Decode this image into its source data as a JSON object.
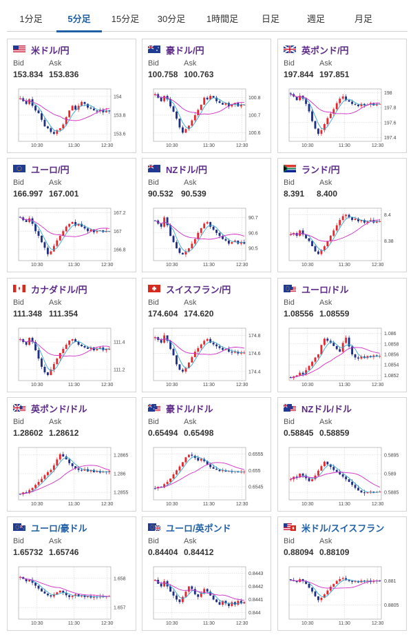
{
  "tabs": [
    {
      "label": "1分足",
      "active": false
    },
    {
      "label": "5分足",
      "active": true
    },
    {
      "label": "15分足",
      "active": false
    },
    {
      "label": "30分足",
      "active": false
    },
    {
      "label": "1時間足",
      "active": false
    },
    {
      "label": "日足",
      "active": false
    },
    {
      "label": "週足",
      "active": false
    },
    {
      "label": "月足",
      "active": false
    }
  ],
  "labels": {
    "bid": "Bid",
    "ask": "Ask"
  },
  "colors": {
    "up": "#e8262d",
    "down": "#1f2e86",
    "ma_short": "#33a6cc",
    "ma_long": "#d129c6",
    "name_purple": "#5b2a86",
    "name_blue": "#1e5fa6"
  },
  "cards": [
    {
      "name": "米ドル/円",
      "flag": "us-flag-icon",
      "bid": "153.834",
      "ask": "153.836",
      "name_color": "purple",
      "chart_data": {
        "type": "candlestick",
        "x_ticks": [
          "10:30",
          "11:30",
          "12:30"
        ],
        "y_ticks": [
          "154",
          "153.8",
          "153.6"
        ],
        "y_tick_values": [
          154.0,
          153.8,
          153.6
        ],
        "ylim": [
          153.52,
          154.08
        ],
        "close": [
          153.98,
          153.95,
          153.92,
          153.97,
          153.9,
          153.85,
          153.82,
          153.75,
          153.68,
          153.66,
          153.62,
          153.6,
          153.64,
          153.66,
          153.7,
          153.78,
          153.85,
          153.9,
          153.86,
          153.9,
          153.94,
          153.92,
          153.88,
          153.87,
          153.85,
          153.84,
          153.86,
          153.83,
          153.85,
          153.84
        ]
      }
    },
    {
      "name": "豪ドル/円",
      "flag": "au-flag-icon",
      "bid": "100.758",
      "ask": "100.763",
      "name_color": "purple",
      "chart_data": {
        "type": "candlestick",
        "x_ticks": [
          "10:30",
          "11:30",
          "12:30"
        ],
        "y_ticks": [
          "100.8",
          "100.7",
          "100.6"
        ],
        "y_tick_values": [
          100.8,
          100.7,
          100.6
        ],
        "ylim": [
          100.55,
          100.85
        ],
        "close": [
          100.82,
          100.8,
          100.78,
          100.81,
          100.79,
          100.75,
          100.72,
          100.68,
          100.63,
          100.6,
          100.62,
          100.64,
          100.67,
          100.7,
          100.73,
          100.76,
          100.8,
          100.79,
          100.81,
          100.8,
          100.78,
          100.77,
          100.76,
          100.77,
          100.75,
          100.76,
          100.77,
          100.75,
          100.76,
          100.76
        ]
      }
    },
    {
      "name": "英ポンド/円",
      "flag": "gb-flag-icon",
      "bid": "197.844",
      "ask": "197.851",
      "name_color": "purple",
      "chart_data": {
        "type": "candlestick",
        "x_ticks": [
          "10:30",
          "11:30",
          "12:30"
        ],
        "y_ticks": [
          "198",
          "197.8",
          "197.6",
          "197.4"
        ],
        "y_tick_values": [
          198.0,
          197.8,
          197.6,
          197.4
        ],
        "ylim": [
          197.35,
          198.05
        ],
        "close": [
          197.98,
          197.95,
          197.9,
          197.96,
          197.92,
          197.85,
          197.75,
          197.62,
          197.52,
          197.45,
          197.5,
          197.58,
          197.66,
          197.72,
          197.78,
          197.86,
          197.92,
          197.95,
          197.9,
          197.88,
          197.85,
          197.84,
          197.82,
          197.85,
          197.83,
          197.84,
          197.86,
          197.83,
          197.85,
          197.85
        ]
      }
    },
    {
      "name": "ユーロ/円",
      "flag": "eu-flag-icon",
      "bid": "166.997",
      "ask": "167.001",
      "name_color": "purple",
      "chart_data": {
        "type": "candlestick",
        "x_ticks": [
          "10:30",
          "11:30",
          "12:30"
        ],
        "y_ticks": [
          "167.2",
          "167",
          "166.8"
        ],
        "y_tick_values": [
          167.2,
          167.0,
          166.8
        ],
        "ylim": [
          166.68,
          167.25
        ],
        "close": [
          167.15,
          167.12,
          167.1,
          167.14,
          167.08,
          167.0,
          166.95,
          166.88,
          166.82,
          166.75,
          166.78,
          166.84,
          166.9,
          166.95,
          167.0,
          167.05,
          167.08,
          167.1,
          167.06,
          167.08,
          167.05,
          167.03,
          167.0,
          167.02,
          166.99,
          167.0,
          167.01,
          166.99,
          167.0,
          167.0
        ]
      }
    },
    {
      "name": "NZドル/円",
      "flag": "nz-flag-icon",
      "bid": "90.532",
      "ask": "90.539",
      "name_color": "purple",
      "chart_data": {
        "type": "candlestick",
        "x_ticks": [
          "10:30",
          "11:30",
          "12:30"
        ],
        "y_ticks": [
          "90.7",
          "90.6",
          "90.5"
        ],
        "y_tick_values": [
          90.7,
          90.6,
          90.5
        ],
        "ylim": [
          90.42,
          90.76
        ],
        "close": [
          90.68,
          90.66,
          90.64,
          90.7,
          90.65,
          90.58,
          90.54,
          90.5,
          90.47,
          90.46,
          90.48,
          90.5,
          90.53,
          90.56,
          90.6,
          90.63,
          90.66,
          90.67,
          90.64,
          90.62,
          90.6,
          90.58,
          90.56,
          90.55,
          90.53,
          90.54,
          90.55,
          90.53,
          90.54,
          90.53
        ]
      }
    },
    {
      "name": "ランド/円",
      "flag": "za-flag-icon",
      "bid": "8.391",
      "ask": "8.400",
      "name_color": "purple",
      "chart_data": {
        "type": "candlestick",
        "x_ticks": [
          "10:30",
          "11:30",
          "12:30"
        ],
        "y_ticks": [
          "8.4",
          "8.38"
        ],
        "y_tick_values": [
          8.4,
          8.38
        ],
        "ylim": [
          8.365,
          8.405
        ],
        "close": [
          8.385,
          8.386,
          8.384,
          8.388,
          8.385,
          8.382,
          8.38,
          8.376,
          8.372,
          8.37,
          8.373,
          8.376,
          8.38,
          8.384,
          8.388,
          8.392,
          8.396,
          8.399,
          8.4,
          8.398,
          8.396,
          8.397,
          8.395,
          8.396,
          8.394,
          8.395,
          8.396,
          8.394,
          8.395,
          8.395
        ]
      }
    },
    {
      "name": "カナダドル/円",
      "flag": "ca-flag-icon",
      "bid": "111.348",
      "ask": "111.354",
      "name_color": "purple",
      "chart_data": {
        "type": "candlestick",
        "x_ticks": [
          "10:30",
          "11:30",
          "12:30"
        ],
        "y_ticks": [
          "111.4",
          "111.2"
        ],
        "y_tick_values": [
          111.4,
          111.2
        ],
        "ylim": [
          111.12,
          111.5
        ],
        "close": [
          111.42,
          111.4,
          111.38,
          111.43,
          111.4,
          111.34,
          111.28,
          111.22,
          111.18,
          111.16,
          111.2,
          111.24,
          111.28,
          111.32,
          111.35,
          111.38,
          111.41,
          111.42,
          111.4,
          111.38,
          111.37,
          111.36,
          111.35,
          111.36,
          111.34,
          111.35,
          111.36,
          111.34,
          111.35,
          111.35
        ]
      }
    },
    {
      "name": "スイスフラン/円",
      "flag": "ch-flag-icon",
      "bid": "174.604",
      "ask": "174.620",
      "name_color": "purple",
      "chart_data": {
        "type": "candlestick",
        "x_ticks": [
          "10:30",
          "11:30",
          "12:30"
        ],
        "y_ticks": [
          "174.8",
          "174.6",
          "174.4"
        ],
        "y_tick_values": [
          174.8,
          174.6,
          174.4
        ],
        "ylim": [
          174.3,
          174.88
        ],
        "close": [
          174.78,
          174.75,
          174.72,
          174.8,
          174.74,
          174.65,
          174.58,
          174.48,
          174.42,
          174.4,
          174.44,
          174.5,
          174.56,
          174.62,
          174.66,
          174.7,
          174.74,
          174.76,
          174.72,
          174.7,
          174.68,
          174.66,
          174.64,
          174.65,
          174.62,
          174.61,
          174.62,
          174.6,
          174.61,
          174.61
        ]
      }
    },
    {
      "name": "ユーロ/ドル",
      "flag": "eu-us-flag-icon",
      "bid": "1.08556",
      "ask": "1.08559",
      "name_color": "purple",
      "chart_data": {
        "type": "candlestick",
        "x_ticks": [
          "10:30",
          "11:30",
          "12:30"
        ],
        "y_ticks": [
          "1.086",
          "1.0858",
          "1.0856",
          "1.0854",
          "1.0852"
        ],
        "y_tick_values": [
          1.086,
          1.0858,
          1.0856,
          1.0854,
          1.0852
        ],
        "ylim": [
          1.0851,
          1.0861
        ],
        "close": [
          1.08515,
          1.08518,
          1.0852,
          1.08525,
          1.08522,
          1.0853,
          1.08538,
          1.08546,
          1.08554,
          1.0856,
          1.08578,
          1.0859,
          1.08586,
          1.08582,
          1.08576,
          1.0857,
          1.08565,
          1.08582,
          1.08592,
          1.08575,
          1.0856,
          1.08554,
          1.08552,
          1.08556,
          1.08553,
          1.08557,
          1.08555,
          1.08558,
          1.08556,
          1.08557
        ]
      }
    },
    {
      "name": "英ポンド/ドル",
      "flag": "gb-us-flag-icon",
      "bid": "1.28602",
      "ask": "1.28612",
      "name_color": "purple",
      "chart_data": {
        "type": "candlestick",
        "x_ticks": [
          "10:30",
          "11:30",
          "12:30"
        ],
        "y_ticks": [
          "1.2865",
          "1.286",
          "1.2855"
        ],
        "y_tick_values": [
          1.2865,
          1.286,
          1.2855
        ],
        "ylim": [
          1.2853,
          1.2867
        ],
        "close": [
          1.28545,
          1.2855,
          1.28548,
          1.28556,
          1.28562,
          1.2857,
          1.28578,
          1.28586,
          1.28596,
          1.28604,
          1.2861,
          1.28622,
          1.28638,
          1.28652,
          1.28646,
          1.28638,
          1.28628,
          1.2862,
          1.28614,
          1.2861,
          1.28608,
          1.28612,
          1.28606,
          1.2861,
          1.28604,
          1.28607,
          1.28603,
          1.28606,
          1.28604,
          1.28607
        ]
      }
    },
    {
      "name": "豪ドル/ドル",
      "flag": "au-us-flag-icon",
      "bid": "0.65494",
      "ask": "0.65498",
      "name_color": "purple",
      "chart_data": {
        "type": "candlestick",
        "x_ticks": [
          "10:30",
          "11:30",
          "12:30"
        ],
        "y_ticks": [
          "0.6555",
          "0.655",
          "0.6545"
        ],
        "y_tick_values": [
          0.6555,
          0.655,
          0.6545
        ],
        "ylim": [
          0.6541,
          0.6557
        ],
        "close": [
          0.65445,
          0.6545,
          0.65448,
          0.65458,
          0.65465,
          0.65475,
          0.65488,
          0.655,
          0.65512,
          0.65525,
          0.6554,
          0.65548,
          0.65545,
          0.65538,
          0.6553,
          0.65535,
          0.65528,
          0.65518,
          0.6551,
          0.65505,
          0.65502,
          0.65498,
          0.655,
          0.65496,
          0.65498,
          0.65495,
          0.65497,
          0.65494,
          0.65496,
          0.65496
        ]
      }
    },
    {
      "name": "NZドル/ドル",
      "flag": "nz-us-flag-icon",
      "bid": "0.58845",
      "ask": "0.58859",
      "name_color": "purple",
      "chart_data": {
        "type": "candlestick",
        "x_ticks": [
          "10:30",
          "11:30",
          "12:30"
        ],
        "y_ticks": [
          "0.5895",
          "0.589",
          "0.5885"
        ],
        "y_tick_values": [
          0.5895,
          0.589,
          0.5885
        ],
        "ylim": [
          0.5883,
          0.5897
        ],
        "close": [
          0.58885,
          0.58892,
          0.5889,
          0.589,
          0.58895,
          0.58888,
          0.5888,
          0.58885,
          0.58895,
          0.58908,
          0.5892,
          0.58932,
          0.58925,
          0.58918,
          0.5891,
          0.58905,
          0.58898,
          0.58892,
          0.58885,
          0.58878,
          0.5887,
          0.58862,
          0.58855,
          0.5885,
          0.58848,
          0.5885,
          0.58852,
          0.58849,
          0.58851,
          0.58852
        ]
      }
    },
    {
      "name": "ユーロ/豪ドル",
      "flag": "eu-au-flag-icon",
      "bid": "1.65732",
      "ask": "1.65746",
      "name_color": "blue",
      "chart_data": {
        "type": "candlestick",
        "x_ticks": [
          "10:30",
          "11:30",
          "12:30"
        ],
        "y_ticks": [
          "1.658",
          "1.657"
        ],
        "y_tick_values": [
          1.658,
          1.657
        ],
        "ylim": [
          1.6566,
          1.6584
        ],
        "close": [
          1.65805,
          1.65798,
          1.6579,
          1.65795,
          1.65785,
          1.65775,
          1.65765,
          1.65755,
          1.65748,
          1.65742,
          1.65738,
          1.65745,
          1.65752,
          1.65758,
          1.6575,
          1.65742,
          1.65736,
          1.6574,
          1.65745,
          1.65738,
          1.65742,
          1.65736,
          1.6574,
          1.65734,
          1.65738,
          1.65735,
          1.65738,
          1.65736,
          1.65739,
          1.65739
        ]
      }
    },
    {
      "name": "ユーロ/英ポンド",
      "flag": "eu-gb-flag-icon",
      "bid": "0.84404",
      "ask": "0.84412",
      "name_color": "blue",
      "chart_data": {
        "type": "candlestick",
        "x_ticks": [
          "10:30",
          "11:30",
          "12:30"
        ],
        "y_ticks": [
          "0.8443",
          "0.8442",
          "0.8441",
          "0.844"
        ],
        "y_tick_values": [
          0.8443,
          0.8442,
          0.8441,
          0.844
        ],
        "ylim": [
          0.84395,
          0.84435
        ],
        "close": [
          0.84425,
          0.84422,
          0.8442,
          0.84424,
          0.8442,
          0.84416,
          0.84413,
          0.8441,
          0.84408,
          0.84412,
          0.84416,
          0.8442,
          0.84418,
          0.84414,
          0.84412,
          0.84415,
          0.84418,
          0.84416,
          0.84413,
          0.8441,
          0.84408,
          0.84406,
          0.84409,
          0.84407,
          0.84405,
          0.84408,
          0.84406,
          0.84409,
          0.84407,
          0.84408
        ]
      }
    },
    {
      "name": "米ドル/スイスフラン",
      "flag": "us-ch-flag-icon",
      "bid": "0.88094",
      "ask": "0.88109",
      "name_color": "blue",
      "chart_data": {
        "type": "candlestick",
        "x_ticks": [
          "10:30",
          "11:30",
          "12:30"
        ],
        "y_ticks": [
          "0.881",
          "0.8805"
        ],
        "y_tick_values": [
          0.881,
          0.8805
        ],
        "ylim": [
          0.8802,
          0.8813
        ],
        "close": [
          0.88102,
          0.881,
          0.88098,
          0.88104,
          0.881,
          0.88094,
          0.88086,
          0.88078,
          0.88068,
          0.8806,
          0.88065,
          0.88072,
          0.8808,
          0.88088,
          0.88094,
          0.881,
          0.88104,
          0.88106,
          0.88102,
          0.881,
          0.88098,
          0.881,
          0.88097,
          0.88101,
          0.88099,
          0.88101,
          0.88098,
          0.881,
          0.88101,
          0.881
        ]
      }
    }
  ]
}
